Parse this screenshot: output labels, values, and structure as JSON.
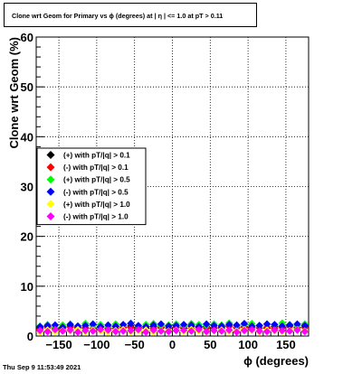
{
  "title": "Clone wrt Geom for Primary vs ϕ (degrees) at |  η | <= 1.0 at pT > 0.11",
  "timestamp": "Thu Sep  9 11:53:49 2021",
  "chart_data": {
    "type": "scatter",
    "title": "Clone wrt Geom for Primary vs ϕ (degrees) at |  η | <= 1.0 at pT > 0.11",
    "xlabel": "ϕ (degrees)",
    "ylabel": "Clone wrt Geom (%)",
    "xlim": [
      -180,
      180
    ],
    "ylim": [
      0,
      60
    ],
    "xticks": [
      -150,
      -100,
      -50,
      0,
      50,
      100,
      150
    ],
    "xtick_labels": [
      "−150",
      "−100",
      "−50",
      "0",
      "50",
      "100",
      "150"
    ],
    "yticks": [
      0,
      10,
      20,
      30,
      40,
      50,
      60
    ],
    "ytick_labels": [
      "0",
      "10",
      "20",
      "30",
      "40",
      "50",
      "60"
    ],
    "grid": true,
    "legend_position": "left-middle",
    "x": [
      -175,
      -165,
      -155,
      -145,
      -135,
      -125,
      -115,
      -105,
      -95,
      -85,
      -75,
      -65,
      -55,
      -45,
      -35,
      -25,
      -15,
      -5,
      5,
      15,
      25,
      35,
      45,
      55,
      65,
      75,
      85,
      95,
      105,
      115,
      125,
      135,
      145,
      155,
      165,
      175
    ],
    "series": [
      {
        "name": "(+) with pT/|q| > 0.1",
        "color": "#000000",
        "values": [
          1.6,
          1.9,
          1.5,
          1.8,
          2.0,
          1.7,
          1.6,
          2.1,
          1.8,
          1.5,
          1.9,
          1.7,
          2.0,
          1.8,
          1.6,
          1.9,
          1.7,
          2.1,
          1.8,
          1.6,
          2.0,
          1.7,
          1.9,
          1.6,
          1.8,
          2.0,
          1.7,
          1.9,
          1.8,
          2.1,
          1.6,
          1.9,
          1.8,
          2.0,
          1.7,
          1.8
        ]
      },
      {
        "name": "(-) with pT/|q| > 0.1",
        "color": "#ff0000",
        "values": [
          1.4,
          1.7,
          1.6,
          1.5,
          1.8,
          1.6,
          1.7,
          1.5,
          1.9,
          1.6,
          1.5,
          1.8,
          1.7,
          1.6,
          1.9,
          1.5,
          1.8,
          1.6,
          1.7,
          1.9,
          1.5,
          1.8,
          1.6,
          1.7,
          1.5,
          1.9,
          1.6,
          1.8,
          1.7,
          1.6,
          1.8,
          1.5,
          1.7,
          1.9,
          1.6,
          1.7
        ]
      },
      {
        "name": "(+) with pT/|q| > 0.5",
        "color": "#00ff00",
        "values": [
          2.0,
          2.3,
          1.8,
          2.2,
          2.4,
          2.0,
          2.5,
          2.1,
          2.3,
          1.9,
          2.4,
          2.2,
          2.6,
          2.0,
          2.3,
          2.5,
          2.1,
          2.2,
          2.4,
          2.0,
          2.5,
          2.3,
          2.1,
          2.4,
          2.2,
          2.6,
          2.0,
          2.3,
          2.5,
          2.1,
          2.4,
          2.2,
          2.6,
          2.3,
          2.1,
          2.4
        ]
      },
      {
        "name": "(-) with pT/|q| > 0.5",
        "color": "#0000ff",
        "values": [
          1.9,
          2.1,
          2.2,
          1.8,
          2.3,
          2.0,
          2.1,
          2.4,
          1.9,
          2.2,
          2.0,
          2.3,
          2.5,
          2.1,
          1.9,
          2.2,
          2.4,
          2.0,
          2.1,
          2.3,
          2.2,
          1.9,
          2.4,
          2.1,
          2.0,
          2.3,
          2.2,
          2.5,
          2.0,
          2.1,
          2.4,
          2.3,
          2.0,
          2.2,
          2.4,
          2.1
        ]
      },
      {
        "name": "(+) with pT/|q| > 1.0",
        "color": "#ffff00",
        "values": [
          0.8,
          1.2,
          0.9,
          1.1,
          1.0,
          1.3,
          0.9,
          1.2,
          1.0,
          0.8,
          1.1,
          1.3,
          0.9,
          1.0,
          1.2,
          0.8,
          1.1,
          1.0,
          1.2,
          0.9,
          1.3,
          1.0,
          0.8,
          1.1,
          1.2,
          0.9,
          1.0,
          1.3,
          1.1,
          0.8,
          1.2,
          1.0,
          0.9,
          1.1,
          1.3,
          1.0
        ]
      },
      {
        "name": "(-) with pT/|q| > 1.0",
        "color": "#ff00ff",
        "values": [
          1.1,
          0.9,
          1.3,
          1.0,
          1.2,
          0.8,
          1.1,
          1.0,
          1.3,
          1.2,
          0.9,
          1.0,
          1.1,
          1.3,
          0.8,
          1.2,
          1.0,
          0.9,
          1.1,
          1.2,
          1.0,
          1.3,
          0.9,
          1.1,
          1.0,
          1.2,
          0.8,
          1.1,
          1.3,
          1.0,
          0.9,
          1.2,
          1.1,
          1.0,
          1.2,
          0.9
        ]
      }
    ]
  }
}
